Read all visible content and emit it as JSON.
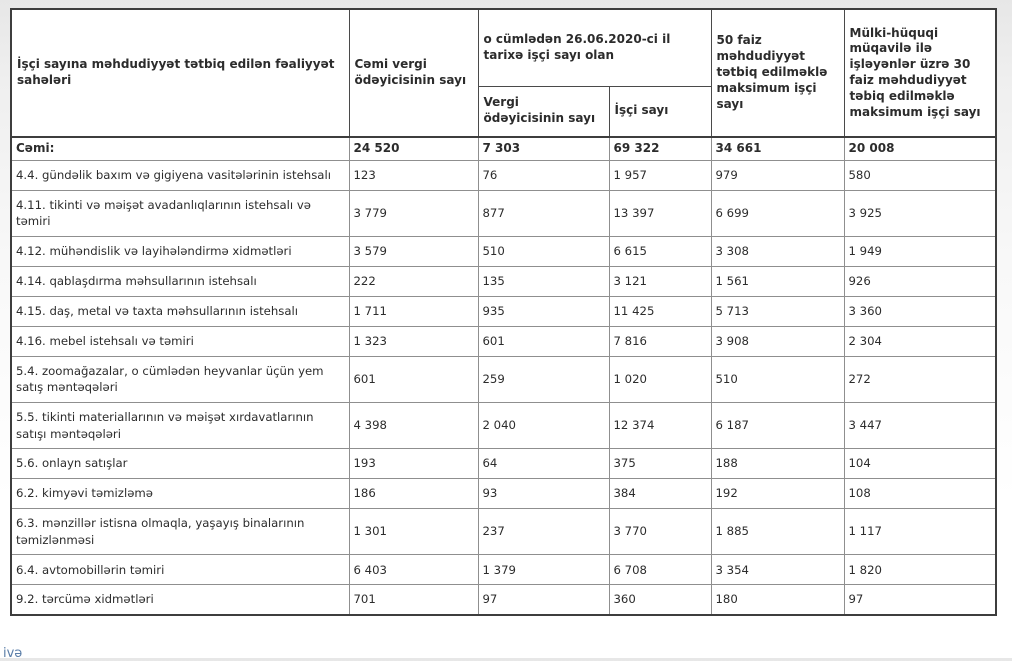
{
  "page": {
    "bottom_link_fragment": "ivə"
  },
  "table": {
    "headers": {
      "activity": "İşçi sayına məhdudiyyət tətbiq edilən fəaliyyət sahələri",
      "total_taxpayers": "Cəmi vergi ödəyicisinin sayı",
      "including_group": "o cümlədən 26.06.2020-ci il tarixə işçi sayı olan",
      "taxpayer_count": "Vergi ödəyicisinin sayı",
      "employee_count": "İşçi sayı",
      "max_50": "50 faiz məhdudiyyət tətbiq edilməklə maksimum işçi sayı",
      "max_30": "Mülki-hüquqi müqavilə ilə işləyənlər üzrə 30 faiz məhdudiyyət təbiq edilməklə maksimum işçi sayı"
    },
    "total_row": {
      "label": "Cəmi:",
      "values": [
        "24 520",
        "7 303",
        "69 322",
        "34 661",
        "20 008"
      ]
    },
    "rows": [
      {
        "label": "4.4. gündəlik baxım və gigiyena vasitələrinin istehsalı",
        "values": [
          "123",
          "76",
          "1 957",
          "979",
          "580"
        ]
      },
      {
        "label": "4.11. tikinti və məişət avadanlıqlarının istehsalı və təmiri",
        "values": [
          "3 779",
          "877",
          "13 397",
          "6 699",
          "3 925"
        ]
      },
      {
        "label": "4.12. mühəndislik və layihələndirmə xidmətləri",
        "values": [
          "3 579",
          "510",
          "6 615",
          "3 308",
          "1 949"
        ]
      },
      {
        "label": "4.14. qablaşdırma məhsullarının istehsalı",
        "values": [
          "222",
          "135",
          "3 121",
          "1 561",
          "926"
        ]
      },
      {
        "label": "4.15. daş, metal və taxta məhsullarının istehsalı",
        "values": [
          "1 711",
          "935",
          "11 425",
          "5 713",
          "3 360"
        ]
      },
      {
        "label": "4.16. mebel istehsalı və təmiri",
        "values": [
          "1 323",
          "601",
          "7 816",
          "3 908",
          "2 304"
        ]
      },
      {
        "label": "5.4. zoomağazalar, o cümlədən heyvanlar üçün yem satış məntəqələri",
        "values": [
          "601",
          "259",
          "1 020",
          "510",
          "272"
        ]
      },
      {
        "label": "5.5. tikinti materiallarının və məişət xırdavatlarının satışı məntəqələri",
        "values": [
          "4 398",
          "2 040",
          "12 374",
          "6 187",
          "3 447"
        ]
      },
      {
        "label": "5.6. onlayn satışlar",
        "values": [
          "193",
          "64",
          "375",
          "188",
          "104"
        ]
      },
      {
        "label": "6.2. kimyəvi təmizləmə",
        "values": [
          "186",
          "93",
          "384",
          "192",
          "108"
        ]
      },
      {
        "label": "6.3. mənzillər istisna olmaqla, yaşayış binalarının təmizlənməsi",
        "values": [
          "1 301",
          "237",
          "3 770",
          "1 885",
          "1 117"
        ]
      },
      {
        "label": "6.4. avtomobillərin təmiri",
        "values": [
          "6 403",
          "1 379",
          "6 708",
          "3 354",
          "1 820"
        ]
      },
      {
        "label": "9.2. tərcümə xidmətləri",
        "values": [
          "701",
          "97",
          "360",
          "180",
          "97"
        ]
      }
    ]
  }
}
